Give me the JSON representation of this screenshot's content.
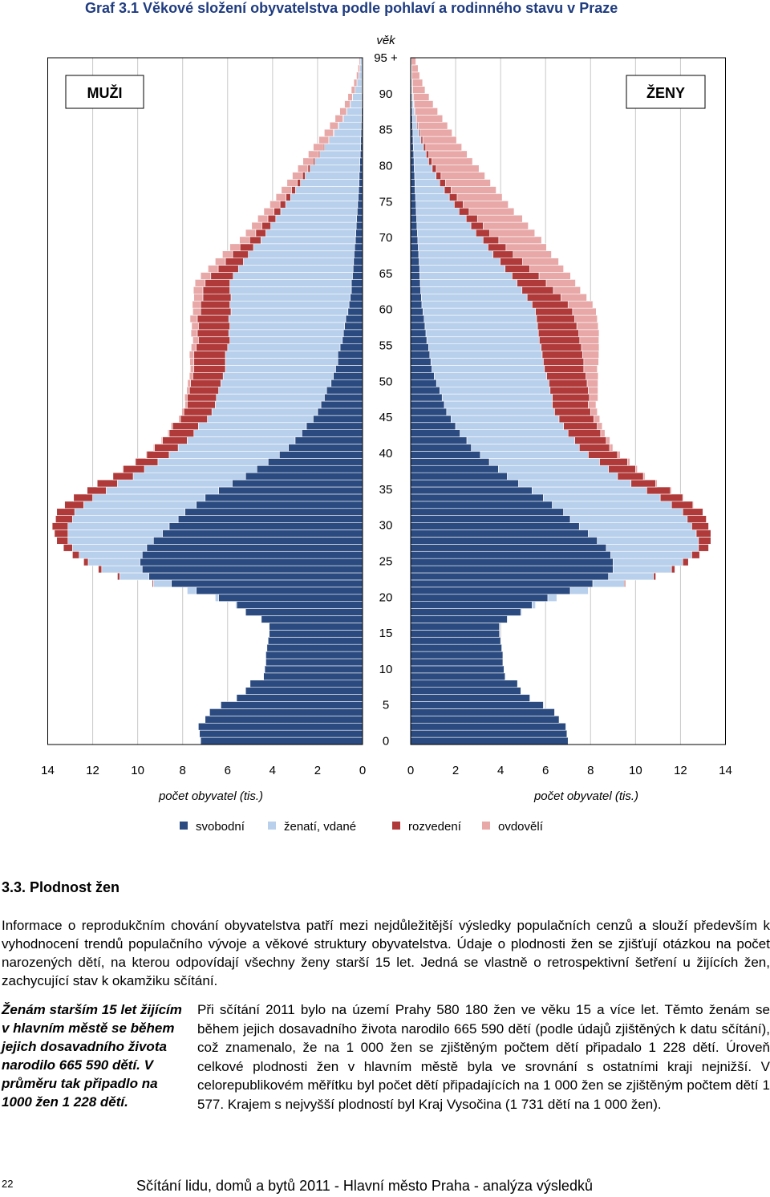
{
  "chart_title": "Graf 3.1  Věkové složení obyvatelstva  podle pohlaví a rodinného stavu v Praze",
  "chart_data": {
    "type": "bar",
    "orientation": "population-pyramid",
    "y_axis_title": "věk",
    "age_tick_labels": [
      "0",
      "5",
      "10",
      "15",
      "20",
      "25",
      "30",
      "35",
      "40",
      "45",
      "50",
      "55",
      "60",
      "65",
      "70",
      "75",
      "80",
      "85",
      "90",
      "95 +"
    ],
    "x_tick_labels": [
      "0",
      "2",
      "4",
      "6",
      "8",
      "10",
      "12",
      "14"
    ],
    "xlabel": "počet obyvatel  (tis.)",
    "xlim": [
      0,
      14
    ],
    "grid": "vertical",
    "left_box_label": "MUŽI",
    "right_box_label": "ŽENY",
    "legend": [
      {
        "label": "svobodní",
        "color": "#2a4a80"
      },
      {
        "label": "ženatí, vdané",
        "color": "#b8d0ec"
      },
      {
        "label": "rozvedení",
        "color": "#b03a3a"
      },
      {
        "label": "ovdovělí",
        "color": "#e8a8a8"
      }
    ],
    "series": [
      {
        "name": "svobodní",
        "color": "#2a4a80",
        "men": [
          7.2,
          7.25,
          7.3,
          7.0,
          6.8,
          6.3,
          5.6,
          5.2,
          5.0,
          4.4,
          4.35,
          4.3,
          4.3,
          4.25,
          4.2,
          4.15,
          4.15,
          4.5,
          5.2,
          5.6,
          6.4,
          7.4,
          8.5,
          9.5,
          9.8,
          9.9,
          9.8,
          9.6,
          9.3,
          8.9,
          8.6,
          8.2,
          7.9,
          7.4,
          7.0,
          6.4,
          5.8,
          5.2,
          4.7,
          4.2,
          3.7,
          3.3,
          3.0,
          2.7,
          2.5,
          2.2,
          2.0,
          1.85,
          1.7,
          1.6,
          1.4,
          1.3,
          1.2,
          1.1,
          1.1,
          1.0,
          0.9,
          0.85,
          0.8,
          0.75,
          0.65,
          0.6,
          0.55,
          0.5,
          0.5,
          0.45,
          0.42,
          0.4,
          0.38,
          0.35,
          0.32,
          0.3,
          0.28,
          0.26,
          0.24,
          0.22,
          0.2,
          0.18,
          0.16,
          0.15,
          0.13,
          0.12,
          0.1,
          0.09,
          0.08,
          0.07,
          0.06,
          0.05,
          0.05,
          0.04,
          0.04,
          0.03,
          0.03,
          0.02,
          0.02,
          0.02
        ],
        "women": [
          7.0,
          6.95,
          6.9,
          6.6,
          6.4,
          5.9,
          5.3,
          4.9,
          4.75,
          4.2,
          4.15,
          4.1,
          4.1,
          4.05,
          4.0,
          3.95,
          3.95,
          4.3,
          4.9,
          5.4,
          6.1,
          7.1,
          8.1,
          8.8,
          9.0,
          9.0,
          8.9,
          8.7,
          8.3,
          7.9,
          7.5,
          7.1,
          6.8,
          6.3,
          5.9,
          5.4,
          4.8,
          4.3,
          3.9,
          3.5,
          3.1,
          2.7,
          2.5,
          2.2,
          2.0,
          1.8,
          1.6,
          1.5,
          1.4,
          1.3,
          1.15,
          1.05,
          0.95,
          0.9,
          0.85,
          0.8,
          0.72,
          0.68,
          0.64,
          0.6,
          0.55,
          0.5,
          0.48,
          0.45,
          0.43,
          0.41,
          0.4,
          0.38,
          0.36,
          0.34,
          0.32,
          0.3,
          0.28,
          0.27,
          0.25,
          0.24,
          0.22,
          0.2,
          0.19,
          0.18,
          0.16,
          0.15,
          0.14,
          0.12,
          0.11,
          0.1,
          0.09,
          0.08,
          0.07,
          0.06,
          0.05,
          0.04,
          0.04,
          0.03,
          0.03,
          0.02
        ]
      },
      {
        "name": "ženatí, vdané",
        "color": "#b8d0ec",
        "men": [
          0,
          0,
          0,
          0,
          0,
          0,
          0,
          0,
          0,
          0,
          0,
          0,
          0,
          0,
          0,
          0,
          0,
          0,
          0.02,
          0.05,
          0.15,
          0.4,
          0.8,
          1.3,
          1.8,
          2.3,
          2.8,
          3.3,
          3.8,
          4.2,
          4.5,
          4.7,
          4.9,
          5.0,
          5.0,
          5.0,
          5.1,
          5.0,
          5.0,
          4.9,
          4.9,
          4.9,
          4.8,
          4.8,
          4.8,
          4.7,
          4.7,
          4.7,
          4.8,
          4.8,
          4.9,
          4.9,
          4.9,
          5.0,
          5.0,
          5.0,
          5.0,
          5.1,
          5.1,
          5.2,
          5.2,
          5.3,
          5.3,
          5.4,
          5.4,
          5.3,
          5.1,
          4.9,
          4.7,
          4.5,
          4.2,
          4.0,
          3.8,
          3.6,
          3.4,
          3.2,
          3.0,
          2.8,
          2.6,
          2.4,
          2.2,
          2.0,
          1.8,
          1.6,
          1.4,
          1.2,
          1.0,
          0.8,
          0.65,
          0.5,
          0.4,
          0.3,
          0.22,
          0.15,
          0.1,
          0.08
        ],
        "women": [
          0,
          0,
          0,
          0,
          0,
          0,
          0,
          0,
          0,
          0,
          0,
          0,
          0,
          0,
          0,
          0,
          0.01,
          0.02,
          0.05,
          0.15,
          0.4,
          0.8,
          1.4,
          2.0,
          2.6,
          3.1,
          3.6,
          4.1,
          4.5,
          4.8,
          5.0,
          5.2,
          5.3,
          5.3,
          5.2,
          5.1,
          5.0,
          4.9,
          4.9,
          4.9,
          4.8,
          4.8,
          4.8,
          4.8,
          4.8,
          4.8,
          4.8,
          4.8,
          4.9,
          4.9,
          5.0,
          5.0,
          5.0,
          5.0,
          5.0,
          5.0,
          5.0,
          5.0,
          5.0,
          5.0,
          5.0,
          4.9,
          4.7,
          4.5,
          4.3,
          4.1,
          3.8,
          3.6,
          3.3,
          3.1,
          2.9,
          2.6,
          2.4,
          2.2,
          1.9,
          1.7,
          1.5,
          1.3,
          1.1,
          0.95,
          0.8,
          0.65,
          0.55,
          0.45,
          0.35,
          0.28,
          0.2,
          0.15,
          0.1,
          0.07,
          0.05,
          0.04,
          0.03,
          0.02,
          0.02,
          0.01
        ]
      },
      {
        "name": "rozvedení",
        "color": "#b03a3a",
        "men": [
          0,
          0,
          0,
          0,
          0,
          0,
          0,
          0,
          0,
          0,
          0,
          0,
          0,
          0,
          0,
          0,
          0,
          0,
          0,
          0,
          0,
          0.02,
          0.05,
          0.1,
          0.15,
          0.2,
          0.3,
          0.4,
          0.5,
          0.6,
          0.7,
          0.75,
          0.8,
          0.85,
          0.85,
          0.85,
          0.9,
          0.9,
          0.95,
          1.0,
          1.0,
          1.05,
          1.1,
          1.1,
          1.15,
          1.2,
          1.25,
          1.25,
          1.3,
          1.3,
          1.35,
          1.35,
          1.4,
          1.4,
          1.4,
          1.4,
          1.4,
          1.4,
          1.4,
          1.4,
          1.35,
          1.3,
          1.25,
          1.2,
          1.1,
          1.0,
          0.9,
          0.8,
          0.7,
          0.6,
          0.5,
          0.45,
          0.4,
          0.35,
          0.3,
          0.25,
          0.2,
          0.18,
          0.15,
          0.12,
          0.1,
          0.08,
          0.06,
          0.05,
          0.04,
          0.03,
          0.02,
          0.02,
          0.01,
          0.01,
          0.01,
          0,
          0,
          0,
          0,
          0
        ],
        "women": [
          0,
          0,
          0,
          0,
          0,
          0,
          0,
          0,
          0,
          0,
          0,
          0,
          0,
          0,
          0,
          0,
          0,
          0,
          0,
          0,
          0,
          0.02,
          0.05,
          0.1,
          0.15,
          0.25,
          0.35,
          0.45,
          0.55,
          0.65,
          0.75,
          0.85,
          0.9,
          0.95,
          1.0,
          1.05,
          1.1,
          1.15,
          1.2,
          1.25,
          1.3,
          1.35,
          1.4,
          1.45,
          1.5,
          1.55,
          1.6,
          1.6,
          1.65,
          1.7,
          1.7,
          1.75,
          1.75,
          1.8,
          1.8,
          1.8,
          1.8,
          1.8,
          1.75,
          1.7,
          1.65,
          1.6,
          1.5,
          1.4,
          1.3,
          1.2,
          1.1,
          1.0,
          0.9,
          0.8,
          0.7,
          0.62,
          0.55,
          0.5,
          0.45,
          0.4,
          0.35,
          0.3,
          0.26,
          0.22,
          0.18,
          0.15,
          0.12,
          0.1,
          0.08,
          0.06,
          0.05,
          0.04,
          0.03,
          0.02,
          0.02,
          0.01,
          0.01,
          0,
          0,
          0
        ]
      },
      {
        "name": "ovdovělí",
        "color": "#e8a8a8",
        "men": [
          0,
          0,
          0,
          0,
          0,
          0,
          0,
          0,
          0,
          0,
          0,
          0,
          0,
          0,
          0,
          0,
          0,
          0,
          0,
          0,
          0,
          0,
          0,
          0,
          0,
          0,
          0,
          0,
          0,
          0,
          0,
          0,
          0.01,
          0.01,
          0.01,
          0.02,
          0.02,
          0.02,
          0.03,
          0.03,
          0.04,
          0.05,
          0.05,
          0.06,
          0.07,
          0.08,
          0.09,
          0.1,
          0.11,
          0.12,
          0.13,
          0.15,
          0.16,
          0.18,
          0.2,
          0.22,
          0.25,
          0.28,
          0.3,
          0.32,
          0.35,
          0.37,
          0.4,
          0.42,
          0.45,
          0.45,
          0.45,
          0.45,
          0.45,
          0.45,
          0.45,
          0.45,
          0.45,
          0.45,
          0.45,
          0.45,
          0.45,
          0.45,
          0.45,
          0.45,
          0.45,
          0.45,
          0.45,
          0.45,
          0.42,
          0.4,
          0.38,
          0.35,
          0.3,
          0.25,
          0.2,
          0.17,
          0.14,
          0.1,
          0.08,
          0.05
        ],
        "women": [
          0,
          0,
          0,
          0,
          0,
          0,
          0,
          0,
          0,
          0,
          0,
          0,
          0,
          0,
          0,
          0,
          0,
          0,
          0,
          0,
          0,
          0,
          0,
          0,
          0,
          0,
          0,
          0,
          0,
          0,
          0,
          0.01,
          0.02,
          0.03,
          0.04,
          0.05,
          0.06,
          0.07,
          0.08,
          0.1,
          0.12,
          0.14,
          0.16,
          0.19,
          0.22,
          0.26,
          0.3,
          0.34,
          0.38,
          0.43,
          0.48,
          0.54,
          0.6,
          0.66,
          0.72,
          0.78,
          0.85,
          0.9,
          0.95,
          1.0,
          1.05,
          1.1,
          1.15,
          1.2,
          1.3,
          1.4,
          1.5,
          1.6,
          1.7,
          1.8,
          1.9,
          2.0,
          2.0,
          2.0,
          2.0,
          2.0,
          2.0,
          2.0,
          2.0,
          1.95,
          1.9,
          1.8,
          1.7,
          1.6,
          1.5,
          1.4,
          1.3,
          1.15,
          1.0,
          0.85,
          0.7,
          0.55,
          0.45,
          0.35,
          0.28,
          0.2
        ]
      }
    ]
  },
  "section_heading": "3.3. Plodnost žen",
  "intro_paragraph": "Informace o reprodukčním chování obyvatelstva patří mezi nejdůležitější výsledky populačních cenzů a slouží především k vyhodnocení trendů populačního vývoje a věkové struktury obyvatelstva. Údaje o plodnosti žen se zjišťují otázkou na počet narozených dětí, na kterou odpovídají všechny ženy starší 15 let. Jedná se vlastně o retrospektivní šetření u žijících žen, zachycující stav k okamžiku sčítání.",
  "sidebar_highlight": "Ženám starším 15 let žijícím v hlavním městě se během jejich dosavadního života narodilo 665 590 dětí. V průměru tak připadlo na 1000 žen 1 228 dětí.",
  "main_paragraph": "Při sčítání 2011 bylo na území Prahy 580 180 žen ve věku 15 a více let. Těmto ženám se během jejich dosavadního života narodilo 665 590 dětí (podle údajů zjištěných k datu sčítání), což znamenalo, že na 1 000 žen se zjištěným počtem dětí připadalo 1 228 dětí. Úroveň celkové plodnosti žen v hlavním městě byla ve srovnání s ostatními kraji nejnižší. V celorepublikovém měřítku byl počet dětí připadajících na 1 000 žen se zjištěným počtem dětí 1 577. Krajem s nejvyšší plodností byl Kraj Vysočina (1 731 dětí na 1 000 žen).",
  "page_number": "22",
  "footer_text": "Sčítání lidu, domů a bytů 2011 - Hlavní město Praha - analýza výsledků"
}
